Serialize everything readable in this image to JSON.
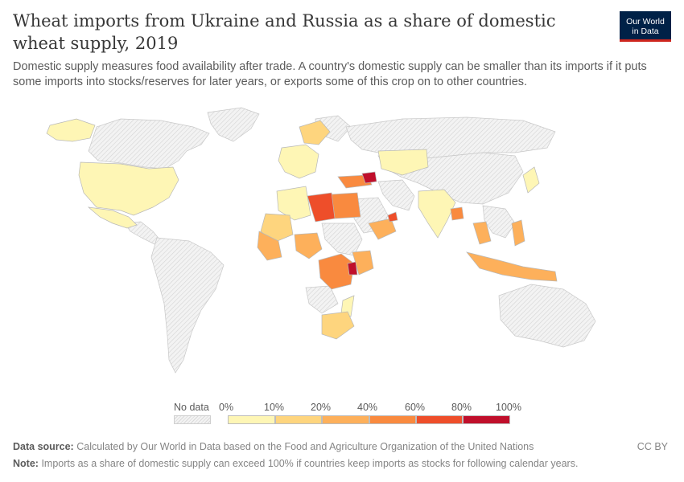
{
  "header": {
    "title": "Wheat imports from Ukraine and Russia as a share of domestic wheat supply, 2019",
    "subtitle": "Domestic supply measures food availability after trade. A country's domestic supply can be smaller than its imports if it puts some imports into stocks/reserves for later years, or exports some of this crop on to other countries."
  },
  "logo": {
    "line1": "Our World",
    "line2": "in Data"
  },
  "legend": {
    "no_data_label": "No data",
    "ticks": [
      "0%",
      "10%",
      "20%",
      "40%",
      "60%",
      "80%",
      "100%"
    ],
    "colors": [
      "#fef6b5",
      "#fed57e",
      "#fdb05b",
      "#f98a3f",
      "#ee4e2a",
      "#c00f2b"
    ]
  },
  "footer": {
    "source_label": "Data source:",
    "source_text": "Calculated by Our World in Data based on the Food and Agriculture Organization of the United Nations",
    "note_label": "Note:",
    "note_text": "Imports as a share of domestic supply can exceed 100% if countries keep imports as stocks for following calendar years.",
    "license": "CC BY"
  },
  "map_colors": {
    "no_data": "#efefef",
    "no_data_hatch": "#d2d2d2",
    "border": "#bdbdbd"
  }
}
